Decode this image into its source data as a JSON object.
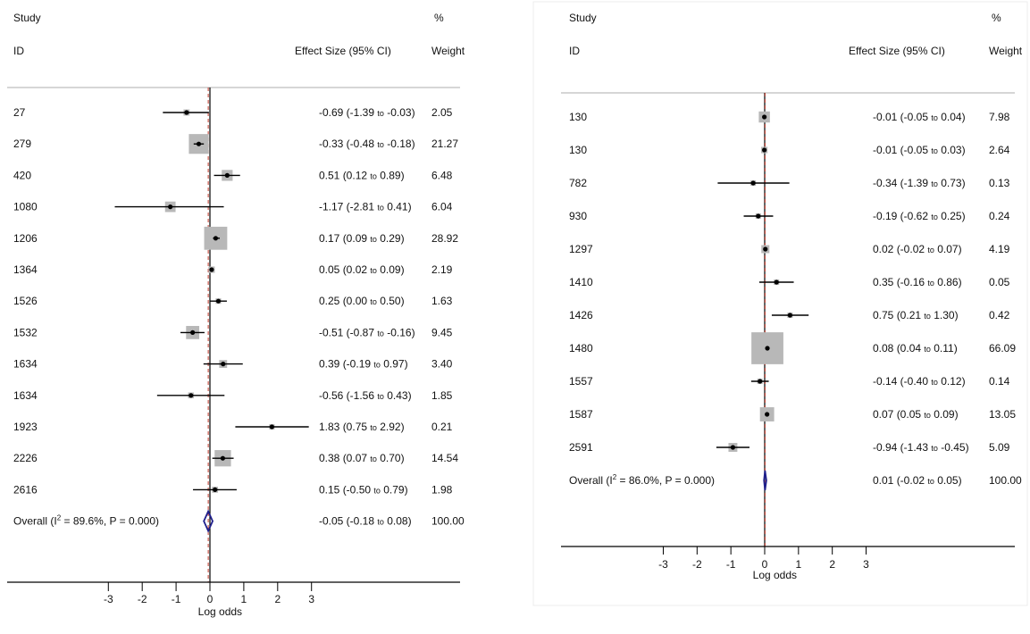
{
  "colors": {
    "box": "#b8b8b8",
    "point": "#000000",
    "ci_line": "#000000",
    "null_line": "#000000",
    "overall_line": "#c0392b",
    "diamond": "#1f1f8c",
    "rule": "#c8c8c8",
    "panel_border": "#ececec"
  },
  "chart_data": [
    {
      "type": "forest",
      "header": {
        "study": "Study",
        "id": "ID",
        "effect": "Effect Size (95% CI)",
        "pct": "%",
        "weight": "Weight"
      },
      "xlabel": "Log odds",
      "xticks": [
        "-3",
        "-2",
        "-1",
        "0",
        "1",
        "2",
        "3"
      ],
      "xlim": [
        -5.6,
        6.8
      ],
      "studies": [
        {
          "id": "27",
          "es": -0.69,
          "lo": -1.39,
          "hi": -0.03,
          "es_text": "-0.69",
          "lo_text": "-1.39",
          "hi_text": "-0.03",
          "weight": "2.05"
        },
        {
          "id": "279",
          "es": -0.33,
          "lo": -0.48,
          "hi": -0.18,
          "es_text": "-0.33",
          "lo_text": "-0.48",
          "hi_text": "-0.18",
          "weight": "21.27"
        },
        {
          "id": "420",
          "es": 0.51,
          "lo": 0.12,
          "hi": 0.89,
          "es_text": "0.51",
          "lo_text": "0.12",
          "hi_text": "0.89",
          "weight": "6.48"
        },
        {
          "id": "1080",
          "es": -1.17,
          "lo": -2.81,
          "hi": 0.41,
          "es_text": "-1.17",
          "lo_text": "-2.81",
          "hi_text": "0.41",
          "weight": "6.04"
        },
        {
          "id": "1206",
          "es": 0.17,
          "lo": 0.09,
          "hi": 0.29,
          "es_text": "0.17",
          "lo_text": "0.09",
          "hi_text": "0.29",
          "weight": "28.92"
        },
        {
          "id": "1364",
          "es": 0.05,
          "lo": 0.02,
          "hi": 0.09,
          "es_text": "0.05",
          "lo_text": "0.02",
          "hi_text": "0.09",
          "weight": "2.19"
        },
        {
          "id": "1526",
          "es": 0.25,
          "lo": 0.0,
          "hi": 0.5,
          "es_text": "0.25",
          "lo_text": "0.00",
          "hi_text": "0.50",
          "weight": "1.63"
        },
        {
          "id": "1532",
          "es": -0.51,
          "lo": -0.87,
          "hi": -0.16,
          "es_text": "-0.51",
          "lo_text": "-0.87",
          "hi_text": "-0.16",
          "weight": "9.45"
        },
        {
          "id": "1634",
          "es": 0.39,
          "lo": -0.19,
          "hi": 0.97,
          "es_text": "0.39",
          "lo_text": "-0.19",
          "hi_text": "0.97",
          "weight": "3.40"
        },
        {
          "id": "1634",
          "es": -0.56,
          "lo": -1.56,
          "hi": 0.43,
          "es_text": "-0.56",
          "lo_text": "-1.56",
          "hi_text": "0.43",
          "weight": "1.85"
        },
        {
          "id": "1923",
          "es": 1.83,
          "lo": 0.75,
          "hi": 2.92,
          "es_text": "1.83",
          "lo_text": "0.75",
          "hi_text": "2.92",
          "weight": "0.21"
        },
        {
          "id": "2226",
          "es": 0.38,
          "lo": 0.07,
          "hi": 0.7,
          "es_text": "0.38",
          "lo_text": "0.07",
          "hi_text": "0.70",
          "weight": "14.54"
        },
        {
          "id": "2616",
          "es": 0.15,
          "lo": -0.5,
          "hi": 0.79,
          "es_text": "0.15",
          "lo_text": "-0.50",
          "hi_text": "0.79",
          "weight": "1.98"
        }
      ],
      "overall": {
        "label": "Overall",
        "i2": "89.6%",
        "p": "0.000",
        "es": -0.05,
        "lo": -0.18,
        "hi": 0.08,
        "es_text": "-0.05",
        "lo_text": "-0.18",
        "hi_text": "0.08",
        "weight": "100.00"
      }
    },
    {
      "type": "forest",
      "header": {
        "study": "Study",
        "id": "ID",
        "effect": "Effect Size (95% CI)",
        "pct": "%",
        "weight": "Weight"
      },
      "xlabel": "Log odds",
      "xticks": [
        "-3",
        "-2",
        "-1",
        "0",
        "1",
        "2",
        "3"
      ],
      "xlim": [
        -5.5,
        7.0
      ],
      "studies": [
        {
          "id": "130",
          "es": -0.01,
          "lo": -0.05,
          "hi": 0.04,
          "es_text": "-0.01",
          "lo_text": "-0.05",
          "hi_text": "0.04",
          "weight": "7.98"
        },
        {
          "id": "130",
          "es": -0.01,
          "lo": -0.05,
          "hi": 0.03,
          "es_text": "-0.01",
          "lo_text": "-0.05",
          "hi_text": "0.03",
          "weight": "2.64"
        },
        {
          "id": "782",
          "es": -0.34,
          "lo": -1.39,
          "hi": 0.73,
          "es_text": "-0.34",
          "lo_text": "-1.39",
          "hi_text": "0.73",
          "weight": "0.13"
        },
        {
          "id": "930",
          "es": -0.19,
          "lo": -0.62,
          "hi": 0.25,
          "es_text": "-0.19",
          "lo_text": "-0.62",
          "hi_text": "0.25",
          "weight": "0.24"
        },
        {
          "id": "1297",
          "es": 0.02,
          "lo": -0.02,
          "hi": 0.07,
          "es_text": "0.02",
          "lo_text": "-0.02",
          "hi_text": "0.07",
          "weight": "4.19"
        },
        {
          "id": "1410",
          "es": 0.35,
          "lo": -0.16,
          "hi": 0.86,
          "es_text": "0.35",
          "lo_text": "-0.16",
          "hi_text": "0.86",
          "weight": "0.05"
        },
        {
          "id": "1426",
          "es": 0.75,
          "lo": 0.21,
          "hi": 1.3,
          "es_text": "0.75",
          "lo_text": "0.21",
          "hi_text": "1.30",
          "weight": "0.42"
        },
        {
          "id": "1480",
          "es": 0.08,
          "lo": 0.04,
          "hi": 0.11,
          "es_text": "0.08",
          "lo_text": "0.04",
          "hi_text": "0.11",
          "weight": "66.09"
        },
        {
          "id": "1557",
          "es": -0.14,
          "lo": -0.4,
          "hi": 0.12,
          "es_text": "-0.14",
          "lo_text": "-0.40",
          "hi_text": "0.12",
          "weight": "0.14"
        },
        {
          "id": "1587",
          "es": 0.07,
          "lo": 0.05,
          "hi": 0.09,
          "es_text": "0.07",
          "lo_text": "0.05",
          "hi_text": "0.09",
          "weight": "13.05"
        },
        {
          "id": "2591",
          "es": -0.94,
          "lo": -1.43,
          "hi": -0.45,
          "es_text": "-0.94",
          "lo_text": "-1.43",
          "hi_text": "-0.45",
          "weight": "5.09"
        }
      ],
      "overall": {
        "label": "Overall",
        "i2": "86.0%",
        "p": "0.000",
        "es": 0.01,
        "lo": -0.02,
        "hi": 0.05,
        "es_text": "0.01",
        "lo_text": "-0.02",
        "hi_text": "0.05",
        "weight": "100.00"
      }
    }
  ]
}
